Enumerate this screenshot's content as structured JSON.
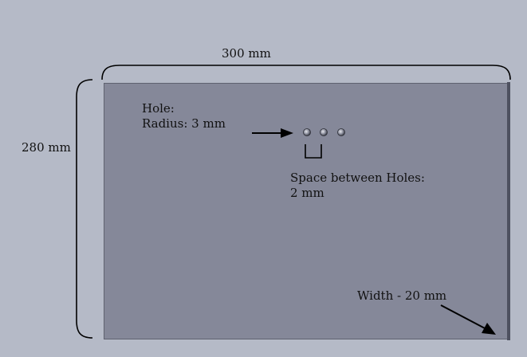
{
  "dimensions": {
    "length_label": "300 mm",
    "height_label": "280 mm",
    "width_label": "Width - 20 mm"
  },
  "hole": {
    "title": "Hole:",
    "radius_label": "Radius: 3 mm",
    "count": 3
  },
  "spacing": {
    "line1": "Space between Holes:",
    "line2": "2 mm"
  },
  "colors": {
    "background": "#b5bac7",
    "plate": "#858899",
    "plate_edge": "#4e5160",
    "annotation": "#000000"
  }
}
